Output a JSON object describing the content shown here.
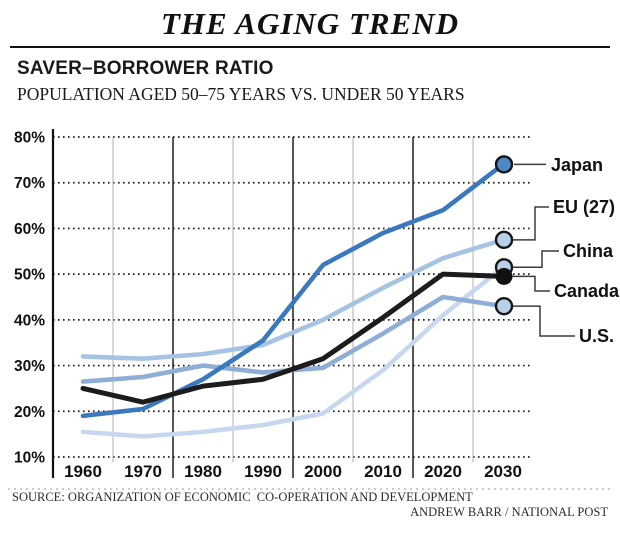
{
  "header": {
    "title": "THE AGING TREND",
    "section_title": "SAVER–BORROWER RATIO",
    "subtitle": "POPULATION AGED 50–75 YEARS VS. UNDER 50 YEARS"
  },
  "chart_data": {
    "type": "line",
    "title": "SAVER–BORROWER RATIO",
    "subtitle": "POPULATION AGED 50–75 YEARS VS. UNDER 50 YEARS",
    "x": [
      1960,
      1970,
      1980,
      1990,
      2000,
      2010,
      2020,
      2030
    ],
    "x_tick_labels": [
      "1960",
      "1970",
      "1980",
      "1990",
      "2000",
      "2010",
      "2020",
      "2030"
    ],
    "y_ticks": [
      10,
      20,
      30,
      40,
      50,
      60,
      70,
      80
    ],
    "y_tick_labels": [
      "10%",
      "20%",
      "30%",
      "40%",
      "50%",
      "60%",
      "70%",
      "80%"
    ],
    "ylim": [
      10,
      80
    ],
    "xlabel": "",
    "ylabel": "",
    "unit": "percent",
    "grid": {
      "horizontal": "dotted",
      "vertical": "mid-decade lines, alternating gray and black"
    },
    "legend_position": "right-end-labels",
    "series": [
      {
        "name": "Japan",
        "color": "#3a79bd",
        "dot_fill": "#4d87c7",
        "values": [
          19,
          20.5,
          27,
          35.5,
          52,
          59,
          64,
          74
        ]
      },
      {
        "name": "EU (27)",
        "color": "#a6c3e3",
        "dot_fill": "#b9d0ea",
        "values": [
          32,
          31.5,
          32.5,
          34.5,
          40,
          47,
          53.5,
          57.5
        ]
      },
      {
        "name": "China",
        "color": "#c7d8ee",
        "dot_fill": "#b9d0ea",
        "values": [
          15.5,
          14.5,
          15.5,
          17,
          19.5,
          29,
          41,
          51.5
        ]
      },
      {
        "name": "Canada",
        "color": "#1c1c1c",
        "dot_fill": "#111111",
        "values": [
          25,
          22,
          25.5,
          27,
          31.5,
          40.5,
          50,
          49.5
        ]
      },
      {
        "name": "U.S.",
        "color": "#8eaed8",
        "dot_fill": "#b9d0ea",
        "values": [
          26.5,
          27.5,
          30,
          28.5,
          29.5,
          37,
          45,
          43
        ]
      }
    ]
  },
  "footer": {
    "source": "SOURCE: ORGANIZATION OF ECONOMIC  CO-OPERATION AND DEVELOPMENT",
    "credit": "ANDREW BARR / NATIONAL POST"
  }
}
